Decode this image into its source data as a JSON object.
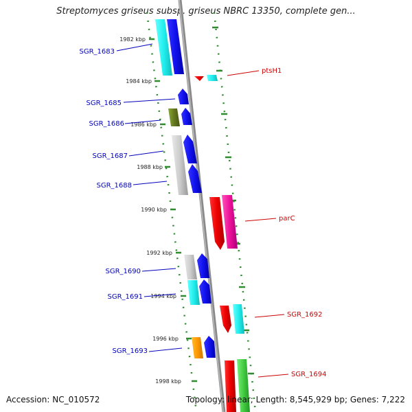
{
  "title": "Streptomyces griseus subsp. griseus NBRC 13350, complete gen...",
  "footer": {
    "accession": "Accession: NC_010572",
    "summary": "Topology: linear; Length: 8,545,929 bp; Genes: 7,222"
  },
  "kbp_ticks": [
    {
      "label": "1982 kbp",
      "kbp": 1982
    },
    {
      "label": "1984 kbp",
      "kbp": 1984
    },
    {
      "label": "1986 kbp",
      "kbp": 1986
    },
    {
      "label": "1988 kbp",
      "kbp": 1988
    },
    {
      "label": "1990 kbp",
      "kbp": 1990
    },
    {
      "label": "1992 kbp",
      "kbp": 1992
    },
    {
      "label": "1994 kbp",
      "kbp": 1994
    },
    {
      "label": "1996 kbp",
      "kbp": 1996
    },
    {
      "label": "1998 kbp",
      "kbp": 1998
    }
  ],
  "genes_left": [
    {
      "name": "SGR_1683",
      "color": "#0000ee"
    },
    {
      "name": "SGR_1685",
      "color": "#0000ee"
    },
    {
      "name": "SGR_1686",
      "color": "#0000ee"
    },
    {
      "name": "SGR_1687",
      "color": "#0000ee"
    },
    {
      "name": "SGR_1688",
      "color": "#0000ee"
    },
    {
      "name": "SGR_1690",
      "color": "#0000ee"
    },
    {
      "name": "SGR_1691",
      "color": "#0000ee"
    },
    {
      "name": "SGR_1693",
      "color": "#0000ee"
    }
  ],
  "genes_right": [
    {
      "name": "ptsH1",
      "color": "#ee0000"
    },
    {
      "name": "parC",
      "color": "#ee0000"
    },
    {
      "name": "SGR_1692",
      "color": "#ee0000"
    },
    {
      "name": "SGR_1694",
      "color": "#ee0000"
    }
  ],
  "colors": {
    "backbone": "#999999",
    "tick_green": "#2e8b2e",
    "label_left": "#0000bb",
    "label_right": "#cc0000"
  }
}
